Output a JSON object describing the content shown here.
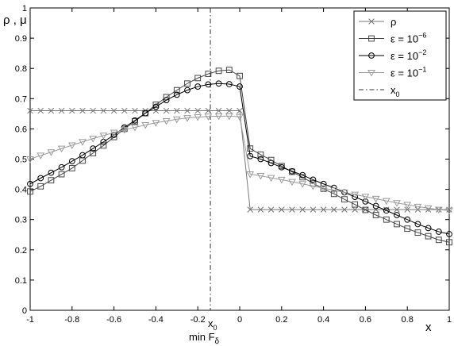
{
  "chart_data": {
    "type": "line",
    "xlabel": "x",
    "ylabel": "ρ , μ",
    "xlim": [
      -1,
      1
    ],
    "ylim": [
      0,
      1
    ],
    "xticks": [
      "-1",
      "-0.8",
      "-0.6",
      "-0.4",
      "-0.2",
      "0",
      "0.2",
      "0.4",
      "0.6",
      "0.8",
      "1"
    ],
    "yticks": [
      "0",
      "0.1",
      "0.2",
      "0.3",
      "0.4",
      "0.5",
      "0.6",
      "0.7",
      "0.8",
      "0.9",
      "1"
    ],
    "grid": false,
    "legend_position": "top-right",
    "annotation": {
      "x0_value": -0.14,
      "x0_label": "x",
      "x0_sub": "0",
      "min_label": "min F",
      "min_sub": "δ"
    },
    "series": [
      {
        "name": "ρ",
        "legend_main": "ρ",
        "legend_sup": "",
        "marker": "x",
        "color": "#777777",
        "x": [
          -1,
          -0.95,
          -0.9,
          -0.85,
          -0.8,
          -0.75,
          -0.7,
          -0.65,
          -0.6,
          -0.55,
          -0.5,
          -0.45,
          -0.4,
          -0.35,
          -0.3,
          -0.25,
          -0.2,
          -0.15,
          -0.1,
          -0.05,
          0,
          0.05,
          0.1,
          0.15,
          0.2,
          0.25,
          0.3,
          0.35,
          0.4,
          0.45,
          0.5,
          0.55,
          0.6,
          0.65,
          0.7,
          0.75,
          0.8,
          0.85,
          0.9,
          0.95,
          1
        ],
        "y": [
          0.66,
          0.66,
          0.66,
          0.66,
          0.66,
          0.66,
          0.66,
          0.66,
          0.66,
          0.66,
          0.66,
          0.66,
          0.66,
          0.66,
          0.66,
          0.66,
          0.66,
          0.66,
          0.66,
          0.66,
          0.66,
          0.333,
          0.333,
          0.333,
          0.333,
          0.333,
          0.333,
          0.333,
          0.333,
          0.333,
          0.333,
          0.333,
          0.333,
          0.333,
          0.333,
          0.333,
          0.333,
          0.333,
          0.333,
          0.333,
          0.333
        ]
      },
      {
        "name": "ε = 10^-6",
        "legend_main": "ε = 10",
        "legend_sup": "−6",
        "marker": "square",
        "color": "#444444",
        "x": [
          -1,
          -0.95,
          -0.9,
          -0.85,
          -0.8,
          -0.75,
          -0.7,
          -0.65,
          -0.6,
          -0.55,
          -0.5,
          -0.45,
          -0.4,
          -0.35,
          -0.3,
          -0.25,
          -0.2,
          -0.15,
          -0.1,
          -0.05,
          0,
          0.05,
          0.1,
          0.15,
          0.2,
          0.25,
          0.3,
          0.35,
          0.4,
          0.45,
          0.5,
          0.55,
          0.6,
          0.65,
          0.7,
          0.75,
          0.8,
          0.85,
          0.9,
          0.95,
          1
        ],
        "y": [
          0.393,
          0.41,
          0.43,
          0.45,
          0.47,
          0.495,
          0.52,
          0.545,
          0.573,
          0.6,
          0.625,
          0.652,
          0.68,
          0.705,
          0.728,
          0.75,
          0.768,
          0.782,
          0.792,
          0.795,
          0.775,
          0.535,
          0.515,
          0.497,
          0.477,
          0.458,
          0.44,
          0.42,
          0.402,
          0.385,
          0.367,
          0.35,
          0.332,
          0.315,
          0.3,
          0.285,
          0.27,
          0.257,
          0.245,
          0.233,
          0.225
        ]
      },
      {
        "name": "ε = 10^-2",
        "legend_main": "ε = 10",
        "legend_sup": "−2",
        "marker": "circle",
        "color": "#000000",
        "x": [
          -1,
          -0.95,
          -0.9,
          -0.85,
          -0.8,
          -0.75,
          -0.7,
          -0.65,
          -0.6,
          -0.55,
          -0.5,
          -0.45,
          -0.4,
          -0.35,
          -0.3,
          -0.25,
          -0.2,
          -0.15,
          -0.1,
          -0.05,
          0,
          0.05,
          0.1,
          0.15,
          0.2,
          0.25,
          0.3,
          0.35,
          0.4,
          0.45,
          0.5,
          0.55,
          0.6,
          0.65,
          0.7,
          0.75,
          0.8,
          0.85,
          0.9,
          0.95,
          1
        ],
        "y": [
          0.418,
          0.437,
          0.455,
          0.473,
          0.493,
          0.513,
          0.535,
          0.557,
          0.58,
          0.605,
          0.628,
          0.652,
          0.673,
          0.695,
          0.713,
          0.728,
          0.74,
          0.747,
          0.75,
          0.748,
          0.74,
          0.51,
          0.5,
          0.487,
          0.473,
          0.46,
          0.447,
          0.432,
          0.418,
          0.405,
          0.39,
          0.375,
          0.36,
          0.345,
          0.33,
          0.315,
          0.3,
          0.285,
          0.272,
          0.26,
          0.252
        ]
      },
      {
        "name": "ε = 10^-1",
        "legend_main": "ε = 10",
        "legend_sup": "−1",
        "marker": "triangle-down",
        "color": "#9a9a9a",
        "x": [
          -1,
          -0.95,
          -0.9,
          -0.85,
          -0.8,
          -0.75,
          -0.7,
          -0.65,
          -0.6,
          -0.55,
          -0.5,
          -0.45,
          -0.4,
          -0.35,
          -0.3,
          -0.25,
          -0.2,
          -0.15,
          -0.1,
          -0.05,
          0,
          0.05,
          0.1,
          0.15,
          0.2,
          0.25,
          0.3,
          0.35,
          0.4,
          0.45,
          0.5,
          0.55,
          0.6,
          0.65,
          0.7,
          0.75,
          0.8,
          0.85,
          0.9,
          0.95,
          1
        ],
        "y": [
          0.5,
          0.512,
          0.523,
          0.535,
          0.546,
          0.557,
          0.568,
          0.578,
          0.588,
          0.597,
          0.605,
          0.613,
          0.62,
          0.626,
          0.632,
          0.636,
          0.639,
          0.641,
          0.642,
          0.642,
          0.64,
          0.45,
          0.445,
          0.438,
          0.432,
          0.425,
          0.418,
          0.411,
          0.404,
          0.397,
          0.39,
          0.383,
          0.376,
          0.369,
          0.362,
          0.355,
          0.349,
          0.343,
          0.338,
          0.333,
          0.33
        ]
      }
    ],
    "legend_extra": {
      "name": "x_0",
      "legend_main": "x",
      "legend_sub": "0"
    }
  }
}
